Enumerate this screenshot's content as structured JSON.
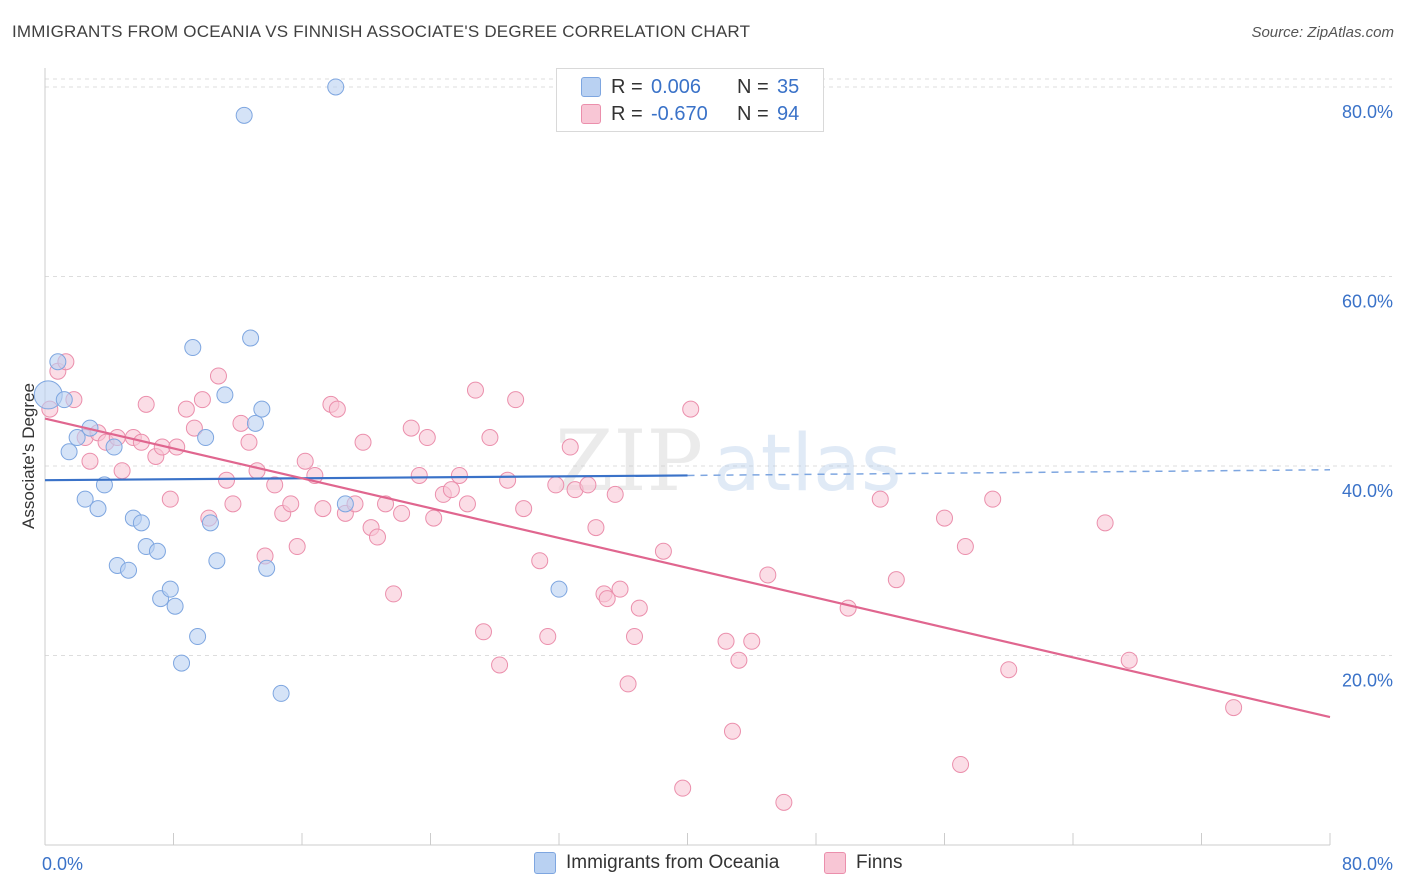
{
  "title": "IMMIGRANTS FROM OCEANIA VS FINNISH ASSOCIATE'S DEGREE CORRELATION CHART",
  "source": "Source: ZipAtlas.com",
  "watermark": {
    "zip": "ZIP",
    "atlas": "atlas"
  },
  "legend_top": {
    "rows": [
      {
        "r_label": "R =",
        "r_value": "0.006",
        "n_label": "N =",
        "n_value": "35",
        "color": "#7ea6e0"
      },
      {
        "r_label": "R =",
        "r_value": "-0.670",
        "n_label": "N =",
        "n_value": "94",
        "color": "#eb8fac"
      }
    ]
  },
  "legend_bottom": {
    "items": [
      {
        "label": "Immigrants from Oceania",
        "color": "#7ea6e0"
      },
      {
        "label": "Finns",
        "color": "#eb8fac"
      }
    ]
  },
  "chart_data": {
    "type": "scatter",
    "title": "IMMIGRANTS FROM OCEANIA VS FINNISH ASSOCIATE'S DEGREE CORRELATION CHART",
    "xlabel": "",
    "ylabel": "Associate's Degree",
    "xlim": [
      0,
      80
    ],
    "ylim": [
      0,
      82
    ],
    "x_tick_labels": [
      "0.0%",
      "80.0%"
    ],
    "y_ticks": [
      20,
      40,
      60,
      80
    ],
    "y_tick_labels": [
      "20.0%",
      "40.0%",
      "60.0%",
      "80.0%"
    ],
    "grid": true,
    "legend_position": "top-center",
    "series": [
      {
        "name": "Immigrants from Oceania",
        "color": "#7ea6e0",
        "fill": "#b9d1f2",
        "trend": {
          "x": [
            0,
            40
          ],
          "y": [
            38.5,
            39.0
          ],
          "dashed_to": [
            80,
            39.6
          ]
        },
        "points": [
          [
            0.2,
            47.5
          ],
          [
            0.8,
            51
          ],
          [
            1.2,
            47
          ],
          [
            1.5,
            41.5
          ],
          [
            2,
            43
          ],
          [
            2.5,
            36.5
          ],
          [
            2.8,
            44
          ],
          [
            3.3,
            35.5
          ],
          [
            3.7,
            38
          ],
          [
            4.3,
            42
          ],
          [
            4.5,
            29.5
          ],
          [
            5.2,
            29
          ],
          [
            5.5,
            34.5
          ],
          [
            6,
            34
          ],
          [
            6.3,
            31.5
          ],
          [
            7,
            31
          ],
          [
            7.2,
            26
          ],
          [
            7.8,
            27
          ],
          [
            8.1,
            25.2
          ],
          [
            8.5,
            19.2
          ],
          [
            9.2,
            52.5
          ],
          [
            9.5,
            22
          ],
          [
            10,
            43
          ],
          [
            10.3,
            34
          ],
          [
            10.7,
            30
          ],
          [
            11.2,
            47.5
          ],
          [
            12.4,
            77
          ],
          [
            12.8,
            53.5
          ],
          [
            13.1,
            44.5
          ],
          [
            13.5,
            46
          ],
          [
            13.8,
            29.2
          ],
          [
            14.7,
            16
          ],
          [
            18.1,
            80
          ],
          [
            18.7,
            36
          ],
          [
            32,
            27
          ]
        ]
      },
      {
        "name": "Finns",
        "color": "#eb8fac",
        "fill": "#f8c6d5",
        "trend": {
          "x": [
            0,
            80
          ],
          "y": [
            45,
            13.5
          ]
        },
        "points": [
          [
            0.3,
            46
          ],
          [
            0.8,
            50
          ],
          [
            1.3,
            51
          ],
          [
            1.8,
            47
          ],
          [
            2.5,
            43
          ],
          [
            2.8,
            40.5
          ],
          [
            3.3,
            43.5
          ],
          [
            3.8,
            42.5
          ],
          [
            4.5,
            43
          ],
          [
            4.8,
            39.5
          ],
          [
            5.5,
            43
          ],
          [
            6,
            42.5
          ],
          [
            6.3,
            46.5
          ],
          [
            6.9,
            41
          ],
          [
            7.3,
            42
          ],
          [
            7.8,
            36.5
          ],
          [
            8.2,
            42
          ],
          [
            8.8,
            46
          ],
          [
            9.3,
            44
          ],
          [
            9.8,
            47
          ],
          [
            10.2,
            34.5
          ],
          [
            10.8,
            49.5
          ],
          [
            11.3,
            38.5
          ],
          [
            11.7,
            36
          ],
          [
            12.2,
            44.5
          ],
          [
            12.7,
            42.5
          ],
          [
            13.2,
            39.5
          ],
          [
            13.7,
            30.5
          ],
          [
            14.3,
            38
          ],
          [
            14.8,
            35
          ],
          [
            15.3,
            36
          ],
          [
            15.7,
            31.5
          ],
          [
            16.2,
            40.5
          ],
          [
            16.8,
            39
          ],
          [
            17.3,
            35.5
          ],
          [
            17.8,
            46.5
          ],
          [
            18.2,
            46
          ],
          [
            18.7,
            35
          ],
          [
            19.3,
            36
          ],
          [
            19.8,
            42.5
          ],
          [
            20.3,
            33.5
          ],
          [
            20.7,
            32.5
          ],
          [
            21.2,
            36
          ],
          [
            21.7,
            26.5
          ],
          [
            22.2,
            35
          ],
          [
            22.8,
            44
          ],
          [
            23.3,
            39
          ],
          [
            23.8,
            43
          ],
          [
            24.2,
            34.5
          ],
          [
            24.8,
            37
          ],
          [
            25.3,
            37.5
          ],
          [
            25.8,
            39
          ],
          [
            26.3,
            36
          ],
          [
            26.8,
            48
          ],
          [
            27.3,
            22.5
          ],
          [
            27.7,
            43
          ],
          [
            28.3,
            19
          ],
          [
            28.8,
            38.5
          ],
          [
            29.3,
            47
          ],
          [
            29.8,
            35.5
          ],
          [
            30.8,
            30
          ],
          [
            31.3,
            22
          ],
          [
            31.8,
            38
          ],
          [
            32.7,
            42
          ],
          [
            33,
            37.5
          ],
          [
            33.8,
            38
          ],
          [
            34.3,
            33.5
          ],
          [
            34.8,
            26.5
          ],
          [
            35,
            26
          ],
          [
            35.8,
            27
          ],
          [
            35.5,
            37
          ],
          [
            36.3,
            17
          ],
          [
            36.7,
            22
          ],
          [
            37,
            25
          ],
          [
            38.5,
            31
          ],
          [
            39.7,
            6
          ],
          [
            40.2,
            46
          ],
          [
            42.4,
            21.5
          ],
          [
            42.8,
            12
          ],
          [
            43.2,
            19.5
          ],
          [
            44,
            21.5
          ],
          [
            45,
            28.5
          ],
          [
            46,
            4.5
          ],
          [
            50,
            25
          ],
          [
            52,
            36.5
          ],
          [
            53,
            28
          ],
          [
            56,
            34.5
          ],
          [
            57,
            8.5
          ],
          [
            57.3,
            31.5
          ],
          [
            59,
            36.5
          ],
          [
            60,
            18.5
          ],
          [
            66,
            34
          ],
          [
            67.5,
            19.5
          ],
          [
            74,
            14.5
          ]
        ]
      }
    ]
  }
}
